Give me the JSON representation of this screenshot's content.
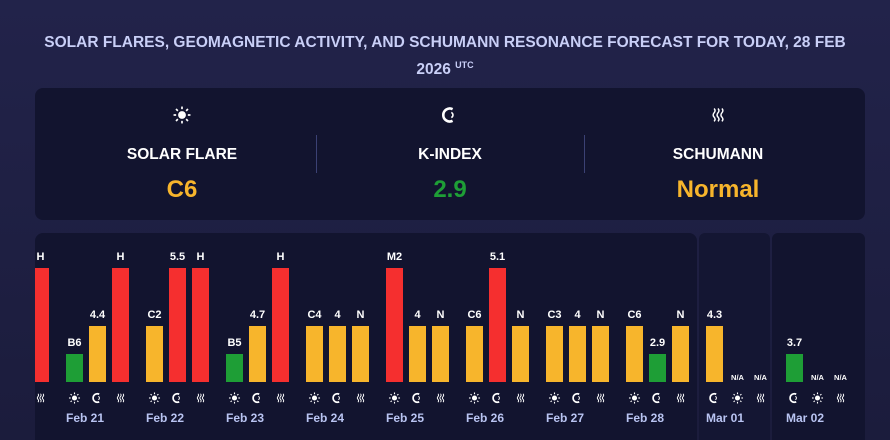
{
  "header": {
    "title": "SOLAR FLARES, GEOMAGNETIC ACTIVITY, AND SCHUMANN RESONANCE FORECAST FOR TODAY, 28 FEB 2026",
    "timezone": "UTC"
  },
  "summary": [
    {
      "kind": "flare",
      "label": "SOLAR FLARE",
      "value": "C6",
      "color": "#f7b52c"
    },
    {
      "kind": "kindex",
      "label": "K-INDEX",
      "value": "2.9",
      "color": "#1e9e36"
    },
    {
      "kind": "schumann",
      "label": "SCHUMANN",
      "value": "Normal",
      "color": "#f7b52c"
    }
  ],
  "forecast": {
    "colors": {
      "high": "#f52f2f",
      "medium": "#f7b52c",
      "low": "#1e9e36"
    },
    "days": [
      {
        "label": null,
        "bars": [
          null,
          null,
          {
            "kind": "schumann",
            "text": "H",
            "color": "#f52f2f"
          }
        ]
      },
      {
        "label": "Feb 21",
        "bars": [
          {
            "kind": "flare",
            "text": "B6",
            "color": "#1e9e36"
          },
          {
            "kind": "kindex",
            "text": "4.4",
            "color": "#f7b52c"
          },
          {
            "kind": "schumann",
            "text": "H",
            "color": "#f52f2f"
          }
        ]
      },
      {
        "label": "Feb 22",
        "bars": [
          {
            "kind": "flare",
            "text": "C2",
            "color": "#f7b52c"
          },
          {
            "kind": "kindex",
            "text": "5.5",
            "color": "#f52f2f"
          },
          {
            "kind": "schumann",
            "text": "H",
            "color": "#f52f2f"
          }
        ]
      },
      {
        "label": "Feb 23",
        "bars": [
          {
            "kind": "flare",
            "text": "B5",
            "color": "#1e9e36"
          },
          {
            "kind": "kindex",
            "text": "4.7",
            "color": "#f7b52c"
          },
          {
            "kind": "schumann",
            "text": "H",
            "color": "#f52f2f"
          }
        ]
      },
      {
        "label": "Feb 24",
        "bars": [
          {
            "kind": "flare",
            "text": "C4",
            "color": "#f7b52c"
          },
          {
            "kind": "kindex",
            "text": "4",
            "color": "#f7b52c"
          },
          {
            "kind": "schumann",
            "text": "N",
            "color": "#f7b52c"
          }
        ]
      },
      {
        "label": "Feb 25",
        "bars": [
          {
            "kind": "flare",
            "text": "M2",
            "color": "#f52f2f"
          },
          {
            "kind": "kindex",
            "text": "4",
            "color": "#f7b52c"
          },
          {
            "kind": "schumann",
            "text": "N",
            "color": "#f7b52c"
          }
        ]
      },
      {
        "label": "Feb 26",
        "bars": [
          {
            "kind": "flare",
            "text": "C6",
            "color": "#f7b52c"
          },
          {
            "kind": "kindex",
            "text": "5.1",
            "color": "#f52f2f"
          },
          {
            "kind": "schumann",
            "text": "N",
            "color": "#f7b52c"
          }
        ]
      },
      {
        "label": "Feb 27",
        "bars": [
          {
            "kind": "flare",
            "text": "C3",
            "color": "#f7b52c"
          },
          {
            "kind": "kindex",
            "text": "4",
            "color": "#f7b52c"
          },
          {
            "kind": "schumann",
            "text": "N",
            "color": "#f7b52c"
          }
        ]
      },
      {
        "label": "Feb 28",
        "bars": [
          {
            "kind": "flare",
            "text": "C6",
            "color": "#f7b52c"
          },
          {
            "kind": "kindex",
            "text": "2.9",
            "color": "#1e9e36"
          },
          {
            "kind": "schumann",
            "text": "N",
            "color": "#f7b52c"
          }
        ]
      },
      {
        "label": "Mar 01",
        "bars": [
          {
            "kind": "kindex",
            "text": "4.3",
            "color": "#f7b52c"
          },
          {
            "kind": "flare",
            "text": "N/A"
          },
          {
            "kind": "schumann",
            "text": "N/A"
          }
        ]
      },
      {
        "label": "Mar 02",
        "bars": [
          {
            "kind": "kindex",
            "text": "3.7",
            "color": "#1e9e36"
          },
          {
            "kind": "flare",
            "text": "N/A"
          },
          {
            "kind": "schumann",
            "text": "N/A"
          }
        ]
      }
    ]
  }
}
